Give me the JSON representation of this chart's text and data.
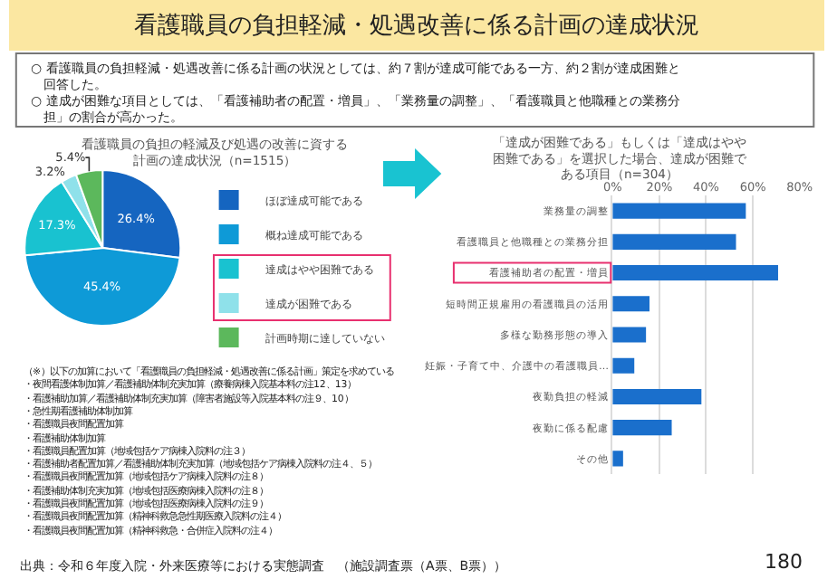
{
  "chart_data": [
    {
      "type": "pie",
      "title": "看護職員の負担の軽減及び処遇の改善に資する計画の達成状況（n=1515）",
      "categories": [
        "ほぼ達成可能である",
        "概ね達成可能である",
        "達成はやや困難である",
        "達成が困難である",
        "計画時期に達していない"
      ],
      "values": [
        26.4,
        45.4,
        17.3,
        3.2,
        5.4
      ],
      "colors": [
        "#1565c0",
        "#0e9ad7",
        "#19c2d0",
        "#8fe1ea",
        "#5cb85c"
      ],
      "value_labels": [
        "26.4%",
        "45.4%",
        "17.3%",
        "3.2%",
        "5.4%"
      ],
      "legend": "right",
      "annotations": [
        "看護職員の負担軽減・処遇改善に係る計画の達成状況",
        "○ 看護職員の負担軽減・処遇改善に係る計画の状況としては、約７割が達成可能である一方、約２割が達成困難と回答した。",
        "○ 達成が困難な項目としては、「看護補助者の配置・増員」、「業務量の調整」、「看護職員と他職種との業務分担」の割合が高かった。",
        "（※）以下の加算において「看護職員の負担軽減・処遇改善に係る計画」策定を求めている",
        "・夜間看護体制加算／看護補助体制充実加算（療養病棟入院基本料の注12、13）",
        "・看護補助加算／看護補助体制充実加算（障害者施設等入院基本料の注９、10）",
        "・急性期看護補助体制加算",
        "・看護職員夜間配置加算",
        "・看護補助体制加算",
        "・看護職員配置加算（地域包括ケア病棟入院料の注３）",
        "・看護補助者配置加算／看護補助体制充実加算（地域包括ケア病棟入院料の注４、５）",
        "・看護職員夜間配置加算（地域包括ケア病棟入院料の注８）",
        "・看護補助体制充実加算（地域包括医療病棟入院料の注８）",
        "・看護職員夜間配置加算（地域包括医療病棟入院料の注９）",
        "・看護職員夜間配置加算（精神科救急急性期医療入院料の注４）",
        "・看護職員夜間配置加算（精神科救急・合併症入院料の注４）",
        "出典：令和６年度入院・外来医療等における実態調査　（施設調査票（A票、B票））",
        "180"
      ]
    },
    {
      "type": "bar",
      "orientation": "horizontal",
      "title": "「達成が困難である」もしくは「達成はやや困難である」を選択した場合、達成が困難である項目（n=304）",
      "categories": [
        "業務量の調整",
        "看護職員と他職種との業務分担",
        "看護補助者の配置・増員",
        "短時間正規雇用の看護職員の活用",
        "多様な勤務形態の導入",
        "妊娠・子育て中、介護中の看護職員…",
        "夜勤負担の軽減",
        "夜勤に係る配慮",
        "その他"
      ],
      "values": [
        57.0,
        52.8,
        70.8,
        15.8,
        14.3,
        9.3,
        38.0,
        25.3,
        4.5
      ],
      "color": "#1a6fcc",
      "xlim": [
        0,
        80
      ],
      "xticks": [
        {
          "value": 0,
          "label": "0%"
        },
        {
          "value": 20,
          "label": "20%"
        },
        {
          "value": 40,
          "label": "40%"
        },
        {
          "value": 60,
          "label": "60%"
        },
        {
          "value": 80,
          "label": "80%"
        }
      ],
      "grid": "x"
    }
  ]
}
